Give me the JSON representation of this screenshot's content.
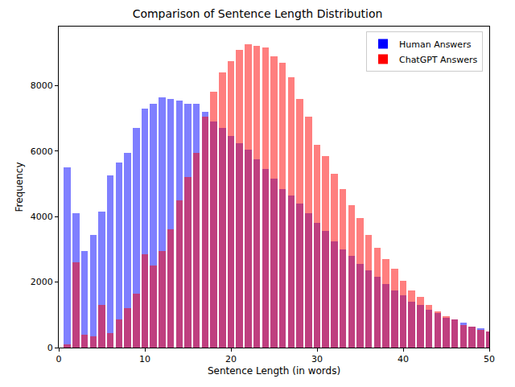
{
  "chart_data": {
    "type": "histogram",
    "title": "Comparison of Sentence Length Distribution",
    "x_label": "Sentence Length (in words)",
    "y_label": "Frequency",
    "bins": [
      0.5,
      1.5,
      2.5,
      3.5,
      4.5,
      5.5,
      6.5,
      7.5,
      8.5,
      9.5,
      10.5,
      11.5,
      12.5,
      13.5,
      14.5,
      15.5,
      16.5,
      17.5,
      18.5,
      19.5,
      20.5,
      21.5,
      22.5,
      23.5,
      24.5,
      25.5,
      26.5,
      27.5,
      28.5,
      29.5,
      30.5,
      31.5,
      32.5,
      33.5,
      34.5,
      35.5,
      36.5,
      37.5,
      38.5,
      39.5,
      40.5,
      41.5,
      42.5,
      43.5,
      44.5,
      45.5,
      46.5,
      47.5,
      48.5,
      49.5,
      50.5
    ],
    "series": [
      {
        "name": "Human Answers",
        "color": "blue",
        "values": [
          5500,
          4100,
          2950,
          3450,
          4150,
          5250,
          5650,
          5950,
          6700,
          7300,
          7450,
          7650,
          7600,
          7550,
          7450,
          7450,
          7200,
          6900,
          6700,
          6450,
          6250,
          6050,
          5750,
          5450,
          5150,
          4850,
          4650,
          4400,
          4100,
          3800,
          3550,
          3250,
          3000,
          2800,
          2550,
          2350,
          2150,
          1950,
          1750,
          1600,
          1400,
          1300,
          1150,
          1050,
          900,
          850,
          750,
          650,
          600,
          500
        ]
      },
      {
        "name": "ChatGPT Answers",
        "color": "red",
        "values": [
          100,
          2600,
          400,
          350,
          1300,
          450,
          850,
          1200,
          1650,
          2850,
          2500,
          2950,
          3600,
          4500,
          5200,
          5950,
          7050,
          7800,
          8400,
          8750,
          9100,
          9250,
          9200,
          9150,
          8900,
          8700,
          8250,
          7600,
          7050,
          6200,
          5850,
          5300,
          4850,
          4350,
          3950,
          3450,
          3050,
          2700,
          2400,
          2050,
          1750,
          1550,
          1300,
          1100,
          950,
          850,
          700,
          650,
          550,
          500
        ]
      }
    ],
    "xlim": [
      0,
      50
    ],
    "xticks": [
      0,
      10,
      20,
      30,
      40,
      50
    ],
    "ylim": [
      0,
      9800
    ],
    "yticks": [
      0,
      2000,
      4000,
      6000,
      8000
    ],
    "grid": false,
    "legend": "upper right"
  }
}
